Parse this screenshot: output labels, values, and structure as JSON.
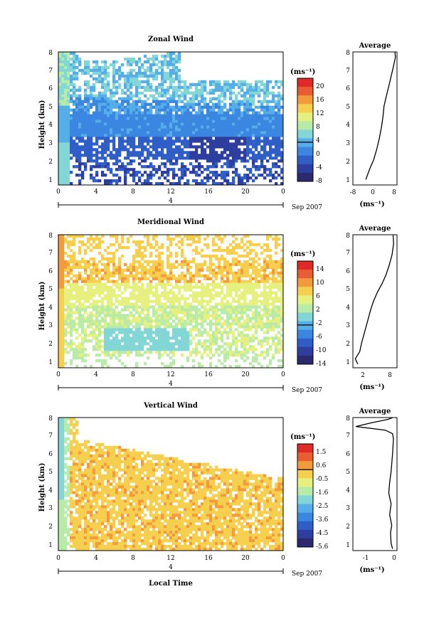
{
  "colors": {
    "zonal_wind": [
      "#2b2a6e",
      "#2d3e9e",
      "#2e5ec6",
      "#3a86e0",
      "#55aee8",
      "#82d6d6",
      "#b8eba8",
      "#e6f07e",
      "#f6cf4e",
      "#f29a3c",
      "#ea5c32",
      "#e02a28"
    ],
    "meridional_wind": [
      "#2b2a6e",
      "#2d3e9e",
      "#2e5ec6",
      "#3a86e0",
      "#55aee8",
      "#82d6d6",
      "#b8eba8",
      "#e6f07e",
      "#f6cf4e",
      "#f29a3c",
      "#ea5c32",
      "#e02a28"
    ],
    "vertical_wind": [
      "#2b2a6e",
      "#2d3e9e",
      "#2e5ec6",
      "#3a86e0",
      "#55aee8",
      "#82d6d6",
      "#b8eba8",
      "#e6f07e",
      "#f6cf4e",
      "#f29a3c",
      "#ea5c32",
      "#e02a28"
    ]
  },
  "chart_data": [
    {
      "type": "heatmap",
      "title": "Zonal Wind",
      "xlabel": "",
      "ylabel": "Height (km)",
      "xlim": [
        0,
        24
      ],
      "ylim": [
        0.6,
        8
      ],
      "xticks": [
        "0",
        "4",
        "8",
        "12",
        "16",
        "20",
        "0"
      ],
      "yticks": [
        "1",
        "2",
        "3",
        "4",
        "5",
        "6",
        "7",
        "8"
      ],
      "colorbar": {
        "unit": "(ms⁻¹)",
        "ticks": [
          "20",
          "16",
          "12",
          "8",
          "4",
          "0",
          "-4",
          "-8"
        ],
        "range": [
          -10,
          22
        ]
      },
      "date_axis": {
        "day": "4",
        "label": "Sep 2007"
      },
      "average": {
        "title": "Average",
        "xlabel": "(ms⁻¹)",
        "xticks": [
          "-8",
          "0",
          "8"
        ],
        "xlim": [
          -8,
          9
        ],
        "profile": [
          [
            -3,
            0.9
          ],
          [
            -1.5,
            1.5
          ],
          [
            0,
            2.0
          ],
          [
            1.2,
            2.6
          ],
          [
            2.2,
            3.2
          ],
          [
            3.0,
            3.8
          ],
          [
            3.6,
            4.4
          ],
          [
            4.0,
            5.0
          ],
          [
            5.0,
            5.6
          ],
          [
            6.0,
            6.2
          ],
          [
            7.0,
            6.8
          ],
          [
            7.8,
            7.3
          ],
          [
            8.4,
            7.7
          ],
          [
            8.2,
            8.0
          ]
        ]
      }
    },
    {
      "type": "heatmap",
      "title": "Meridional Wind",
      "xlabel": "",
      "ylabel": "Height (km)",
      "xlim": [
        0,
        24
      ],
      "ylim": [
        0.6,
        8
      ],
      "xticks": [
        "0",
        "4",
        "8",
        "12",
        "16",
        "20",
        "0"
      ],
      "yticks": [
        "1",
        "2",
        "3",
        "4",
        "5",
        "6",
        "7",
        "8"
      ],
      "colorbar": {
        "unit": "(ms⁻¹)",
        "ticks": [
          "14",
          "10",
          "6",
          "2",
          "-2",
          "-6",
          "-10",
          "-14"
        ],
        "range": [
          -16,
          16
        ]
      },
      "date_axis": {
        "day": "4",
        "label": "Sep 2007"
      },
      "average": {
        "title": "Average",
        "xlabel": "(ms⁻¹)",
        "xticks": [
          "2",
          "8"
        ],
        "xlim": [
          0,
          9
        ],
        "profile": [
          [
            1.0,
            0.8
          ],
          [
            0.5,
            1.1
          ],
          [
            1.4,
            1.5
          ],
          [
            1.8,
            2.0
          ],
          [
            2.4,
            2.6
          ],
          [
            3.0,
            3.2
          ],
          [
            3.6,
            3.8
          ],
          [
            4.2,
            4.3
          ],
          [
            5.0,
            4.8
          ],
          [
            6.0,
            5.3
          ],
          [
            6.8,
            5.8
          ],
          [
            7.4,
            6.3
          ],
          [
            8.0,
            6.9
          ],
          [
            8.3,
            7.5
          ],
          [
            8.2,
            8.0
          ]
        ]
      }
    },
    {
      "type": "heatmap",
      "title": "Vertical Wind",
      "xlabel": "Local Time",
      "ylabel": "Height (km)",
      "xlim": [
        0,
        24
      ],
      "ylim": [
        0.6,
        8
      ],
      "xticks": [
        "0",
        "4",
        "8",
        "12",
        "16",
        "20",
        "0"
      ],
      "yticks": [
        "1",
        "2",
        "3",
        "4",
        "5",
        "6",
        "7",
        "8"
      ],
      "colorbar": {
        "unit": "(ms⁻¹)",
        "ticks": [
          "1.5",
          "0.6",
          "-0.5",
          "-1.6",
          "-2.5",
          "-3.6",
          "-4.5",
          "-5.6"
        ],
        "range": [
          -6,
          2
        ]
      },
      "date_axis": {
        "day": "4",
        "label": "Sep 2007"
      },
      "average": {
        "title": "Average",
        "xlabel": "(ms⁻¹)",
        "xticks": [
          "-1",
          "0"
        ],
        "xlim": [
          -1.4,
          0.1
        ],
        "profile": [
          [
            -0.05,
            0.7
          ],
          [
            -0.1,
            1.0
          ],
          [
            -0.12,
            1.6
          ],
          [
            -0.08,
            2.0
          ],
          [
            -0.15,
            2.6
          ],
          [
            -0.1,
            3.2
          ],
          [
            -0.18,
            3.8
          ],
          [
            -0.15,
            4.4
          ],
          [
            -0.1,
            5.0
          ],
          [
            -0.05,
            6.0
          ],
          [
            -0.02,
            6.8
          ],
          [
            -0.05,
            7.1
          ],
          [
            -0.3,
            7.3
          ],
          [
            -1.3,
            7.5
          ],
          [
            -0.8,
            7.7
          ],
          [
            -0.2,
            7.9
          ],
          [
            -0.05,
            8.0
          ]
        ]
      }
    }
  ]
}
